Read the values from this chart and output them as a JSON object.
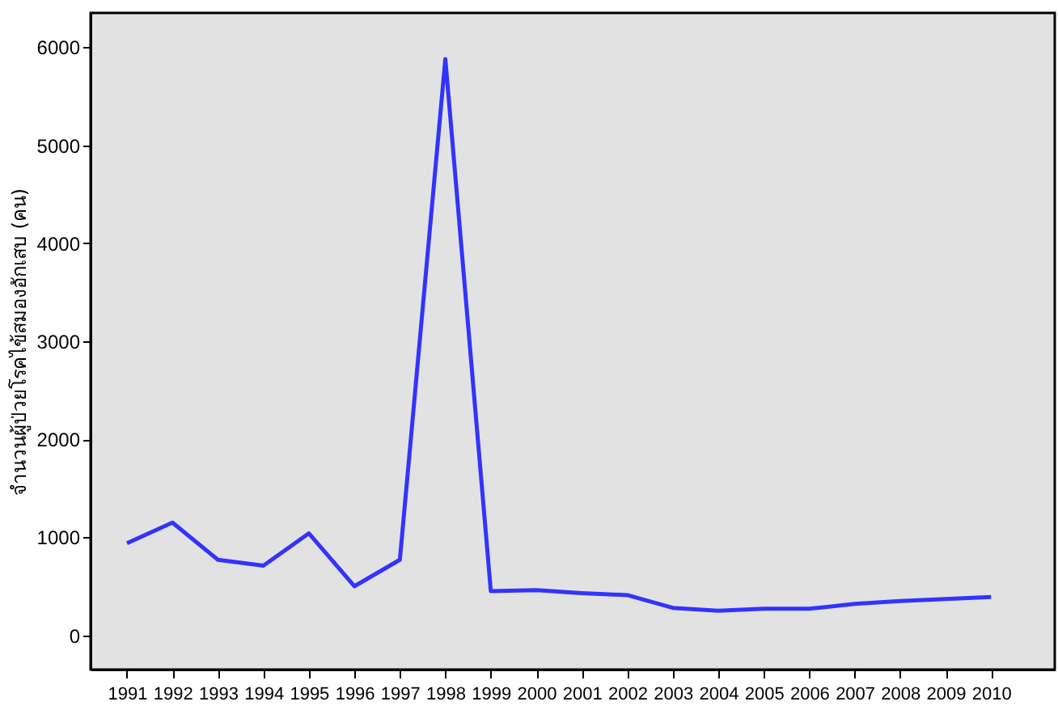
{
  "chart_data": {
    "type": "line",
    "ylabel": "จำนวนผู้ป่วยโรคไข้สมองอักเสบ (คน)",
    "categories": [
      "1991",
      "1992",
      "1993",
      "1994",
      "1995",
      "1996",
      "1997",
      "1998",
      "1999",
      "2000",
      "2001",
      "2002",
      "2003",
      "2004",
      "2005",
      "2006",
      "2007",
      "2008",
      "2009",
      "2010"
    ],
    "series": [
      {
        "color": "#3333ff",
        "values": [
          940,
          1150,
          770,
          710,
          1040,
          500,
          770,
          5880,
          450,
          460,
          430,
          410,
          280,
          250,
          270,
          270,
          320,
          350,
          370,
          390
        ]
      }
    ],
    "ylim": [
      -350,
      6350
    ],
    "yticks": [
      0,
      1000,
      2000,
      3000,
      4000,
      5000,
      6000
    ],
    "grid": false
  }
}
